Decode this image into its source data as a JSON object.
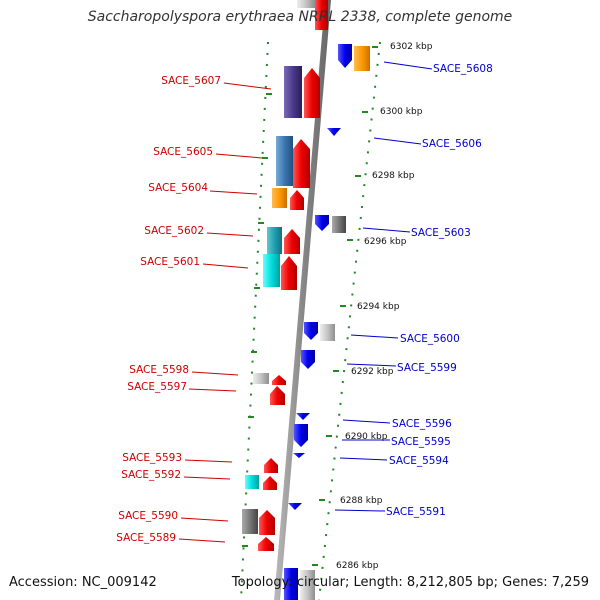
{
  "title": "Saccharopolyspora erythraea NRRL 2338, complete genome",
  "footer": {
    "accession": "Accession: NC_009142",
    "summary": "Topology: circular; Length: 8,212,805 bp; Genes: 7,259"
  },
  "colors": {
    "forward_genes": "#ee0000",
    "reverse_genes": "#0000ee",
    "forward_labels": "#cc0000",
    "reverse_labels": "#0000cc",
    "cog_orange": "#ff9900",
    "cog_cyan": "#00cccc",
    "cog_teal": "#20a0b0",
    "cog_purple": "#4a3a8a",
    "cog_steelblue": "#3a78b0",
    "cog_gray": "#777777",
    "cog_lightgray": "#bbbbbb",
    "backbone": "#888888",
    "dotted_boundary": "#228822"
  },
  "ticks": [
    "6302 kbp",
    "6300 kbp",
    "6298 kbp",
    "6296 kbp",
    "6294 kbp",
    "6292 kbp",
    "6290 kbp",
    "6288 kbp",
    "6286 kbp"
  ],
  "forward_genes": [
    "SACE_5607",
    "SACE_5605",
    "SACE_5604",
    "SACE_5602",
    "SACE_5601",
    "SACE_5598",
    "SACE_5597",
    "SACE_5593",
    "SACE_5592",
    "SACE_5590",
    "SACE_5589"
  ],
  "reverse_genes": [
    "SACE_5608",
    "SACE_5606",
    "SACE_5603",
    "SACE_5600",
    "SACE_5599",
    "SACE_5596",
    "SACE_5595",
    "SACE_5594",
    "SACE_5591"
  ]
}
